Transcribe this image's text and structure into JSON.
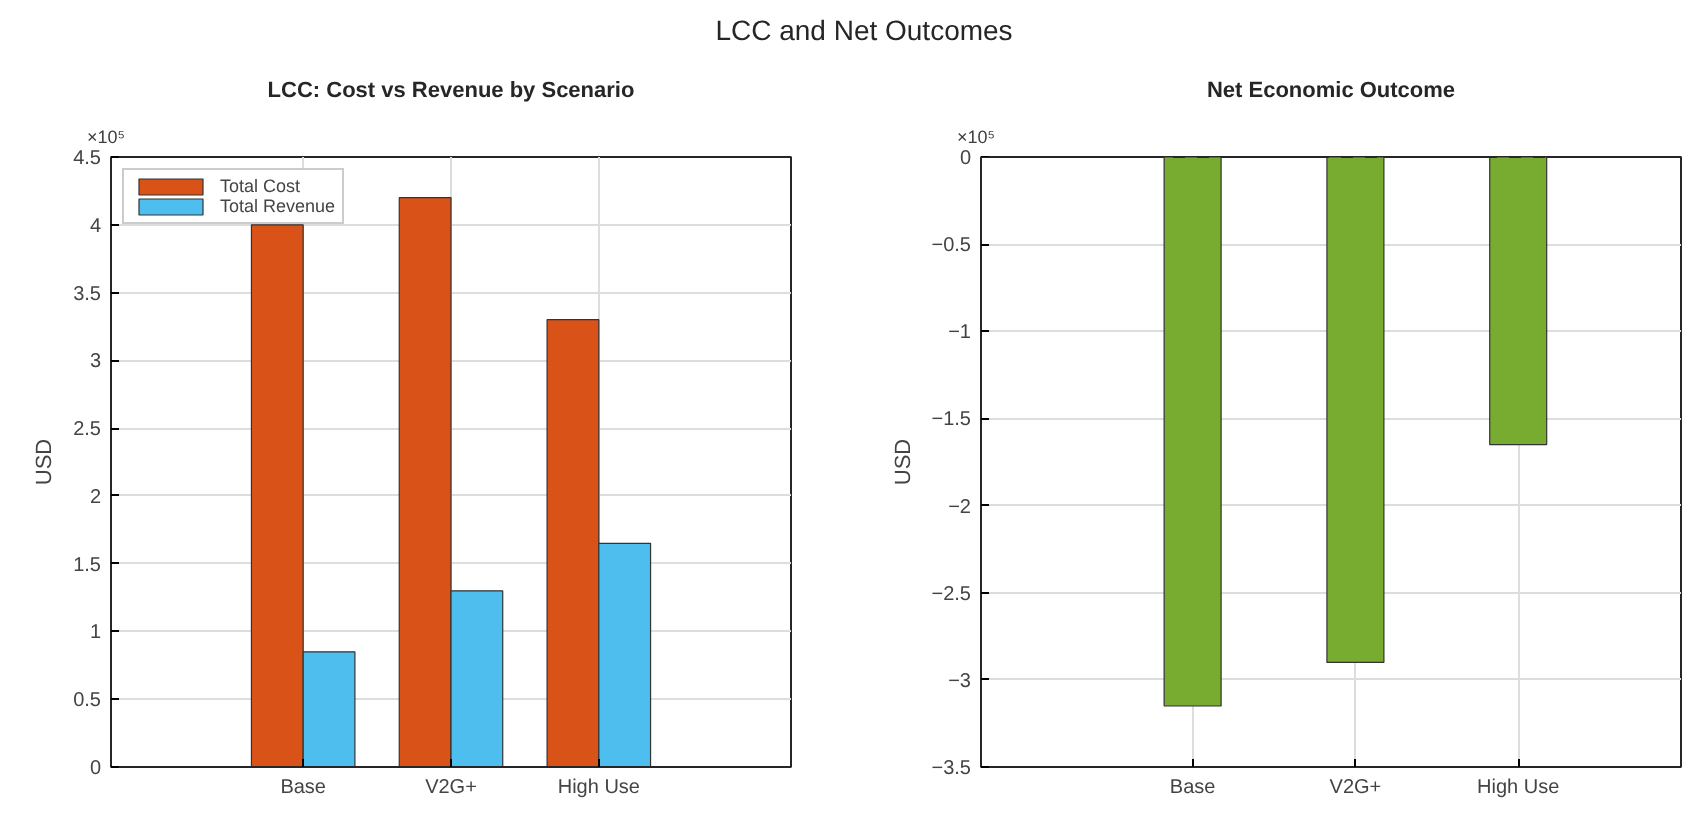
{
  "chart_data": [
    {
      "type": "bar",
      "title": "LCC: Cost vs Revenue by Scenario",
      "ylabel": "USD",
      "categories": [
        "Base",
        "V2G+",
        "High Use"
      ],
      "series": [
        {
          "name": "Total Cost",
          "color": "#d95319",
          "values": [
            4.0,
            4.2,
            3.3
          ]
        },
        {
          "name": "Total Revenue",
          "color": "#4dbeee",
          "values": [
            0.85,
            1.3,
            1.65
          ]
        }
      ],
      "ylim": [
        0,
        4.5
      ],
      "yticks": [
        0,
        0.5,
        1,
        1.5,
        2,
        2.5,
        3,
        3.5,
        4,
        4.5
      ],
      "grid": true,
      "legend": "top left",
      "annotations": [
        "LCC and Net Outcomes",
        "×10⁵"
      ]
    },
    {
      "type": "bar",
      "title": "Net Economic Outcome",
      "ylabel": "USD",
      "categories": [
        "Base",
        "V2G+",
        "High Use"
      ],
      "values": [
        -3.15,
        -2.9,
        -1.65
      ],
      "color": "#77ac30",
      "ylim": [
        -3.5,
        0
      ],
      "yticks": [
        {
          "value": -3.5,
          "label": "−3.5"
        },
        {
          "value": -3,
          "label": "−3"
        },
        {
          "value": -2.5,
          "label": "−2.5"
        },
        {
          "value": -2,
          "label": "−2"
        },
        {
          "value": -1.5,
          "label": "−1.5"
        },
        {
          "value": -1,
          "label": "−1"
        },
        {
          "value": -0.5,
          "label": "−0.5"
        },
        0
      ],
      "grid": true,
      "ref_lines": [
        {
          "axis": "y",
          "value": 0,
          "label": null,
          "color": "#262626",
          "line_style": "dashed"
        }
      ],
      "annotations": [
        "×10⁵"
      ]
    }
  ]
}
